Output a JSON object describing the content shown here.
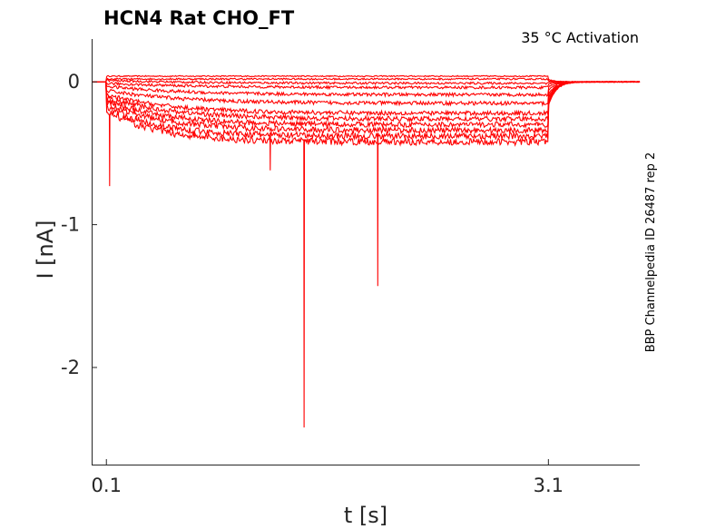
{
  "chart_data": {
    "type": "line",
    "title": "HCN4  Rat  CHO_FT",
    "annotation": "35 °C  Activation",
    "side_label": "BBP Channelpedia ID 26487 rep 2",
    "xlabel": "t [s]",
    "ylabel": "I [nA]",
    "xlim": [
      0,
      3.72
    ],
    "ylim": [
      -2.68,
      0.3
    ],
    "x_ticks": [
      0.1,
      3.1
    ],
    "x_tick_labels": [
      "0.1",
      "3.1"
    ],
    "y_ticks": [
      0,
      -1,
      -2
    ],
    "y_tick_labels": [
      "0",
      "-1",
      "-2"
    ],
    "step_start": 0.1,
    "step_end": 3.1,
    "trace_color": "#ff0000",
    "series": [
      {
        "hold": 0.0,
        "i_init": 0.04,
        "i_ss": 0.04,
        "tau": 0.5
      },
      {
        "hold": 0.0,
        "i_init": 0.02,
        "i_ss": 0.02,
        "tau": 0.5
      },
      {
        "hold": 0.0,
        "i_init": 0.01,
        "i_ss": -0.01,
        "tau": 0.6
      },
      {
        "hold": 0.0,
        "i_init": -0.01,
        "i_ss": -0.04,
        "tau": 0.6
      },
      {
        "hold": 0.0,
        "i_init": -0.03,
        "i_ss": -0.09,
        "tau": 0.5
      },
      {
        "hold": 0.0,
        "i_init": -0.06,
        "i_ss": -0.15,
        "tau": 0.5
      },
      {
        "hold": 0.0,
        "i_init": -0.09,
        "i_ss": -0.22,
        "tau": 0.45
      },
      {
        "hold": 0.0,
        "i_init": -0.11,
        "i_ss": -0.26,
        "tau": 0.45
      },
      {
        "hold": 0.0,
        "i_init": -0.13,
        "i_ss": -0.3,
        "tau": 0.4
      },
      {
        "hold": 0.0,
        "i_init": -0.15,
        "i_ss": -0.34,
        "tau": 0.4
      },
      {
        "hold": 0.0,
        "i_init": -0.17,
        "i_ss": -0.38,
        "tau": 0.35
      },
      {
        "hold": 0.0,
        "i_init": -0.2,
        "i_ss": -0.42,
        "tau": 0.35
      }
    ],
    "artifacts": [
      {
        "series": 11,
        "t": 0.12,
        "i": -0.73
      },
      {
        "series": 10,
        "t": 1.21,
        "i": -0.62
      },
      {
        "series": 11,
        "t": 1.44,
        "i": -2.42
      },
      {
        "series": 10,
        "t": 1.94,
        "i": -1.43
      }
    ]
  }
}
